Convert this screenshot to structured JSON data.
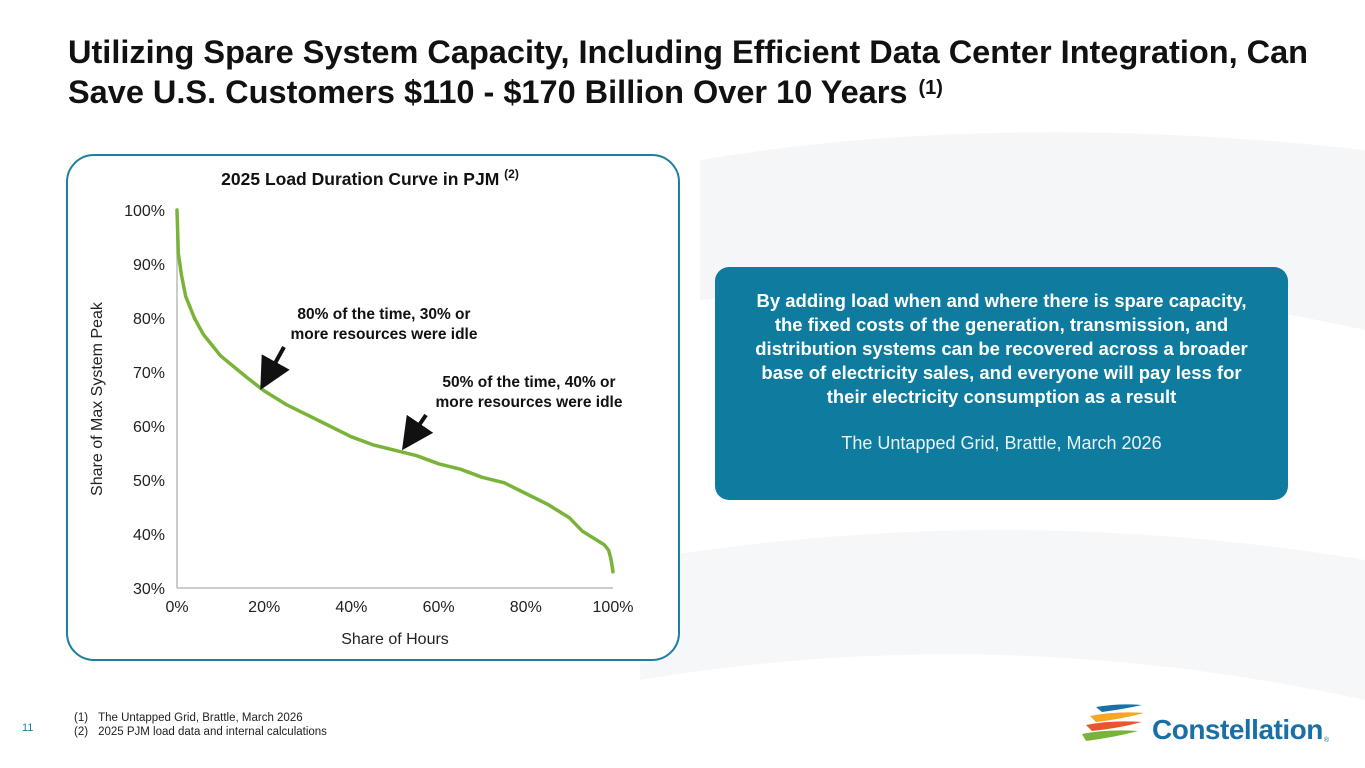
{
  "page": {
    "title": "Utilizing Spare System Capacity, Including Efficient Data Center Integration, Can Save U.S. Customers $110 - $170 Billion Over 10 Years",
    "title_footnote": "(1)",
    "page_number": "11"
  },
  "callout": {
    "text": "By adding load when and where there is spare capacity, the fixed costs of the generation, transmission, and distribution systems can be recovered across a broader base of electricity sales, and everyone will pay less for their electricity consumption as a result",
    "source": "The Untapped Grid, Brattle, March 2026"
  },
  "footnotes": [
    {
      "marker": "(1)",
      "text": "The Untapped Grid, Brattle, March 2026"
    },
    {
      "marker": "(2)",
      "text": "2025 PJM load data and internal calculations"
    }
  ],
  "logo": {
    "name": "Constellation",
    "reg": "®"
  },
  "colors": {
    "accent": "#0f7c9f",
    "card_border": "#1e7f9f",
    "curve": "#7ab33a",
    "logo_blue": "#1a6fa5"
  },
  "chart_data": {
    "type": "line",
    "title": "2025 Load Duration Curve in PJM",
    "title_footnote": "(2)",
    "xlabel": "Share of Hours",
    "ylabel": "Share of Max System Peak",
    "xlim": [
      0,
      100
    ],
    "ylim": [
      30,
      100
    ],
    "x_ticks": [
      "0%",
      "20%",
      "40%",
      "60%",
      "80%",
      "100%"
    ],
    "y_ticks": [
      "30%",
      "40%",
      "50%",
      "60%",
      "70%",
      "80%",
      "90%",
      "100%"
    ],
    "grid": false,
    "series": [
      {
        "name": "Load duration",
        "x": [
          0,
          0.3,
          1,
          2,
          4,
          6,
          8,
          10,
          13,
          16,
          20,
          25,
          30,
          35,
          40,
          45,
          50,
          55,
          60,
          65,
          70,
          75,
          80,
          85,
          90,
          93,
          96,
          98,
          99,
          99.5,
          100
        ],
        "y": [
          100,
          92,
          88,
          84,
          80,
          77,
          75,
          73,
          71,
          69,
          66.5,
          64,
          62,
          60,
          58,
          56.5,
          55.5,
          54.5,
          53,
          52,
          50.5,
          49.5,
          47.5,
          45.5,
          43,
          40.5,
          39,
          38,
          37,
          35.5,
          33
        ]
      }
    ],
    "annotations": [
      {
        "text_lines": [
          "80% of the time, 30% or",
          "more resources were idle"
        ],
        "x": 20,
        "y": 67
      },
      {
        "text_lines": [
          "50% of the time, 40% or",
          "more resources were idle"
        ],
        "x": 53,
        "y": 56
      }
    ]
  }
}
